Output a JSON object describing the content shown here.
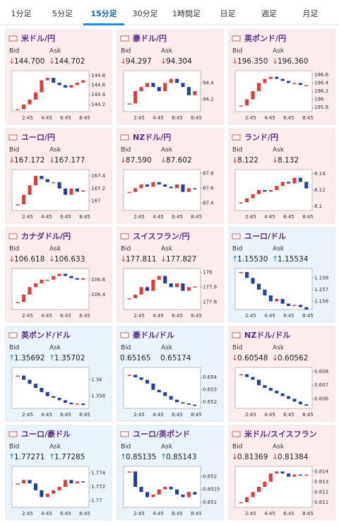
{
  "tabs": {
    "items": [
      "1分足",
      "5分足",
      "15分足",
      "30分足",
      "1時間足",
      "日足",
      "週足",
      "月足"
    ],
    "selected": 2
  },
  "labels": {
    "bid": "Bid",
    "ask": "Ask"
  },
  "xticks": [
    "2:45",
    "4:45",
    "6:45",
    "8:45"
  ],
  "panels": [
    {
      "name": "米ドル/円",
      "bid": "144.700",
      "ask": "144.702",
      "arrow": "↓",
      "arrow_color": "#e53935",
      "color": "#fcecec",
      "ylim": [
        144.05,
        144.9
      ],
      "yticks": [
        144.2,
        144.4,
        144.6,
        144.8
      ],
      "closes": [
        144.1,
        144.2,
        144.3,
        144.45,
        144.7,
        144.75,
        144.65,
        144.6,
        144.55,
        144.6,
        144.65,
        144.7
      ]
    },
    {
      "name": "豪ドル/円",
      "bid": "94.297",
      "ask": "94.304",
      "arrow": "↓",
      "arrow_color": "#e53935",
      "color": "#fcecec",
      "ylim": [
        94.05,
        94.55
      ],
      "yticks": [
        94.2,
        94.4
      ],
      "closes": [
        94.15,
        94.3,
        94.35,
        94.4,
        94.35,
        94.3,
        94.4,
        94.45,
        94.4,
        94.35,
        94.25,
        94.3
      ]
    },
    {
      "name": "英ポンド/円",
      "bid": "196.350",
      "ask": "196.360",
      "arrow": "↓",
      "arrow_color": "#e53935",
      "color": "#fcecec",
      "ylim": [
        195.7,
        196.7
      ],
      "yticks": [
        195.8,
        196,
        196.2,
        196.4,
        196.6
      ],
      "closes": [
        195.85,
        196.0,
        196.2,
        196.4,
        196.5,
        196.55,
        196.5,
        196.45,
        196.4,
        196.4,
        196.35,
        196.35
      ]
    },
    {
      "name": "ユーロ/円",
      "bid": "167.172",
      "ask": "167.177",
      "arrow": "↓",
      "arrow_color": "#e53935",
      "color": "#fcecec",
      "ylim": [
        166.85,
        167.5
      ],
      "yticks": [
        167,
        167.2,
        167.4
      ],
      "closes": [
        166.95,
        167.1,
        167.25,
        167.4,
        167.35,
        167.3,
        167.3,
        167.2,
        167.1,
        167.2,
        167.15,
        167.17
      ]
    },
    {
      "name": "NZドル/円",
      "bid": "87.590",
      "ask": "87.602",
      "arrow": "↓",
      "arrow_color": "#e53935",
      "color": "#fcecec",
      "ylim": [
        87.3,
        87.85
      ],
      "yticks": [
        87.4,
        87.6,
        87.8
      ],
      "closes": [
        87.55,
        87.6,
        87.65,
        87.62,
        87.68,
        87.65,
        87.62,
        87.6,
        87.65,
        87.55,
        87.6,
        87.59
      ]
    },
    {
      "name": "ランド/円",
      "bid": "8.122",
      "ask": "8.132",
      "arrow": "↓",
      "arrow_color": "#e53935",
      "color": "#fcecec",
      "ylim": [
        8.095,
        8.145
      ],
      "yticks": [
        8.1,
        8.12,
        8.14
      ],
      "closes": [
        8.105,
        8.11,
        8.115,
        8.12,
        8.118,
        8.12,
        8.125,
        8.13,
        8.128,
        8.135,
        8.13,
        8.122
      ]
    },
    {
      "name": "カナダドル/円",
      "bid": "106.618",
      "ask": "106.633",
      "arrow": "↓",
      "arrow_color": "#e53935",
      "color": "#fcecec",
      "ylim": [
        106.2,
        106.75
      ],
      "yticks": [
        106.4,
        106.6
      ],
      "closes": [
        106.3,
        106.4,
        106.5,
        106.55,
        106.6,
        106.6,
        106.65,
        106.68,
        106.65,
        106.62,
        106.6,
        106.62
      ]
    },
    {
      "name": "スイスフラン/円",
      "bid": "177.811",
      "ask": "177.827",
      "arrow": "↓",
      "arrow_color": "#e53935",
      "color": "#fcecec",
      "ylim": [
        177.5,
        178.05
      ],
      "yticks": [
        177.6,
        177.8,
        178
      ],
      "closes": [
        177.65,
        177.7,
        177.8,
        177.75,
        177.9,
        177.95,
        177.85,
        177.8,
        177.85,
        177.75,
        177.8,
        177.81
      ]
    },
    {
      "name": "ユーロ/ドル",
      "bid": "1.15530",
      "ask": "1.15534",
      "arrow": "↑",
      "arrow_color": "#1e88e5",
      "color": "#e8f3fb",
      "ylim": [
        1.1553,
        1.1588
      ],
      "yticks": [
        1.156,
        1.157,
        1.158
      ],
      "closes": [
        1.1585,
        1.158,
        1.1575,
        1.157,
        1.1565,
        1.156,
        1.1562,
        1.1558,
        1.1556,
        1.1557,
        1.1555,
        1.1553
      ]
    },
    {
      "name": "英ポンド/ドル",
      "bid": "1.35692",
      "ask": "1.35702",
      "arrow": "↑",
      "arrow_color": "#1e88e5",
      "color": "#e8f3fb",
      "ylim": [
        1.3565,
        1.3615
      ],
      "yticks": [
        1.358,
        1.36
      ],
      "closes": [
        1.3605,
        1.36,
        1.3595,
        1.359,
        1.3585,
        1.358,
        1.3578,
        1.3575,
        1.3572,
        1.357,
        1.3571,
        1.3569
      ]
    },
    {
      "name": "豪ドル/ドル",
      "bid": "0.65165",
      "ask": "0.65174",
      "color": "#e8f3fb",
      "ylim": [
        0.6515,
        0.6548
      ],
      "yticks": [
        0.652,
        0.653,
        0.654
      ],
      "closes": [
        0.6542,
        0.654,
        0.6538,
        0.6535,
        0.653,
        0.6528,
        0.6525,
        0.6522,
        0.652,
        0.6519,
        0.6518,
        0.6517
      ]
    },
    {
      "name": "NZドル/ドル",
      "bid": "0.60548",
      "ask": "0.60562",
      "arrow": "↓",
      "arrow_color": "#e53935",
      "color": "#fcecec",
      "ylim": [
        0.6053,
        0.6083
      ],
      "yticks": [
        0.606,
        0.607,
        0.608
      ],
      "closes": [
        0.6078,
        0.6076,
        0.6074,
        0.607,
        0.6068,
        0.6066,
        0.6064,
        0.6062,
        0.606,
        0.6058,
        0.6056,
        0.6055
      ]
    },
    {
      "name": "ユーロ/豪ドル",
      "bid": "1.77271",
      "ask": "1.77285",
      "arrow": "↑",
      "arrow_color": "#1e88e5",
      "color": "#e8f3fb",
      "ylim": [
        1.769,
        1.775
      ],
      "yticks": [
        1.77,
        1.772,
        1.774
      ],
      "closes": [
        1.7725,
        1.773,
        1.7725,
        1.7715,
        1.7705,
        1.771,
        1.7715,
        1.772,
        1.773,
        1.7725,
        1.7728,
        1.7727
      ]
    },
    {
      "name": "ユーロ/英ポンド",
      "bid": "0.85135",
      "ask": "0.85143",
      "arrow": "↑",
      "arrow_color": "#1e88e5",
      "color": "#e8f3fb",
      "ylim": [
        0.8508,
        0.8524
      ],
      "yticks": [
        0.851,
        0.8515,
        0.852
      ],
      "closes": [
        0.8522,
        0.8516,
        0.8514,
        0.8512,
        0.8513,
        0.8515,
        0.8516,
        0.8515,
        0.8513,
        0.8512,
        0.8514,
        0.8513
      ]
    },
    {
      "name": "米ドル/スイスフラン",
      "bid": "0.81369",
      "ask": "0.81384",
      "arrow": "↓",
      "arrow_color": "#e53935",
      "color": "#fcecec",
      "ylim": [
        0.8105,
        0.8145
      ],
      "yticks": [
        0.811,
        0.812,
        0.813,
        0.814
      ],
      "closes": [
        0.811,
        0.8115,
        0.812,
        0.8125,
        0.813,
        0.8138,
        0.814,
        0.8138,
        0.8135,
        0.8137,
        0.8136,
        0.8137
      ]
    }
  ]
}
